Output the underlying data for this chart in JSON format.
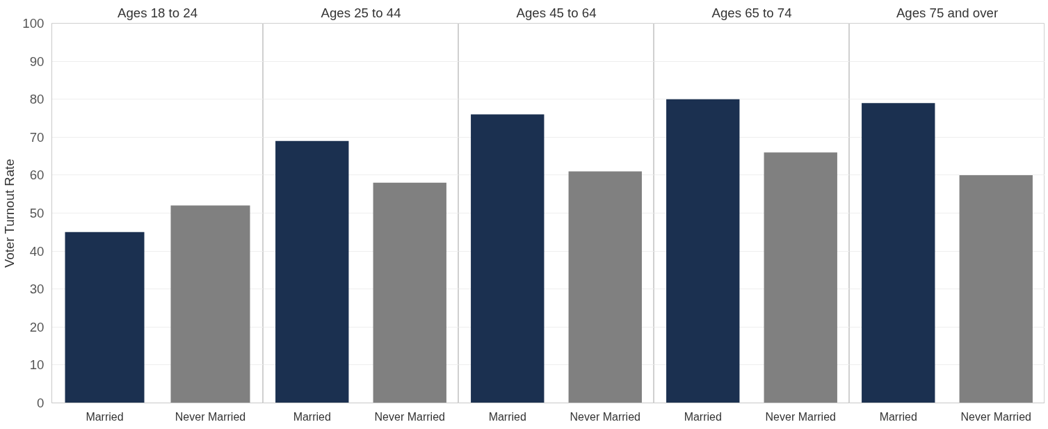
{
  "chart_data": [
    {
      "type": "bar",
      "title": "Ages 18 to 24",
      "ylabel": "Voter Turnout Rate",
      "categories": [
        "Married",
        "Never Married"
      ],
      "values": [
        45,
        52
      ],
      "colors": [
        "#1b3050",
        "#808080"
      ],
      "ylim": [
        0,
        100
      ],
      "yticks": [
        0,
        10,
        20,
        30,
        40,
        50,
        60,
        70,
        80,
        90,
        100
      ],
      "grid": "y"
    },
    {
      "type": "bar",
      "title": "Ages 25 to 44",
      "categories": [
        "Married",
        "Never Married"
      ],
      "values": [
        69,
        58
      ],
      "colors": [
        "#1b3050",
        "#808080"
      ],
      "ylim": [
        0,
        100
      ],
      "yticks": [
        0,
        10,
        20,
        30,
        40,
        50,
        60,
        70,
        80,
        90,
        100
      ],
      "grid": "y",
      "tick_labels": "x"
    },
    {
      "type": "bar",
      "title": "Ages 45 to 64",
      "categories": [
        "Married",
        "Never Married"
      ],
      "values": [
        76,
        61
      ],
      "colors": [
        "#1b3050",
        "#808080"
      ],
      "ylim": [
        0,
        100
      ],
      "yticks": [
        0,
        10,
        20,
        30,
        40,
        50,
        60,
        70,
        80,
        90,
        100
      ],
      "grid": "y",
      "tick_labels": "x"
    },
    {
      "type": "bar",
      "title": "Ages 65 to 74",
      "categories": [
        "Married",
        "Never Married"
      ],
      "values": [
        80,
        66
      ],
      "colors": [
        "#1b3050",
        "#808080"
      ],
      "ylim": [
        0,
        100
      ],
      "yticks": [
        0,
        10,
        20,
        30,
        40,
        50,
        60,
        70,
        80,
        90,
        100
      ],
      "grid": "y",
      "tick_labels": "x"
    },
    {
      "type": "bar",
      "title": "Ages 75 and over",
      "categories": [
        "Married",
        "Never Married"
      ],
      "values": [
        79,
        60
      ],
      "colors": [
        "#1b3050",
        "#808080"
      ],
      "ylim": [
        0,
        100
      ],
      "yticks": [
        0,
        10,
        20,
        30,
        40,
        50,
        60,
        70,
        80,
        90,
        100
      ],
      "grid": "y",
      "tick_labels": "x"
    }
  ]
}
